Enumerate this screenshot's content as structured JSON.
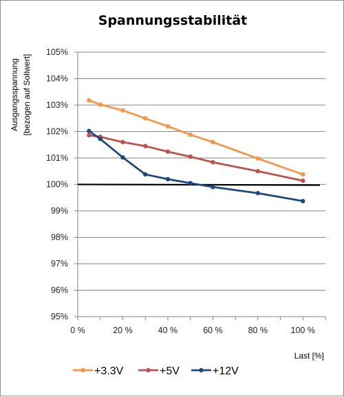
{
  "chart_data": {
    "type": "line",
    "title": "Spannungsstabilität",
    "ylabel_lines": [
      "Ausgangsspannung",
      "[bezogen auf Sollwert]"
    ],
    "xlabel": "Last [%]",
    "xlim": [
      0,
      110
    ],
    "ylim": [
      95,
      105
    ],
    "x_ticks": [
      0,
      20,
      40,
      60,
      80,
      100
    ],
    "x_tick_labels": [
      "0 %",
      "20 %",
      "40 %",
      "60 %",
      "80 %",
      "100 %"
    ],
    "y_ticks": [
      95,
      96,
      97,
      98,
      99,
      100,
      101,
      102,
      103,
      104,
      105
    ],
    "y_tick_labels": [
      "95%",
      "96%",
      "97%",
      "98%",
      "99%",
      "100%",
      "101%",
      "102%",
      "103%",
      "104%",
      "105%"
    ],
    "grid": "horizontal",
    "legend_position": "bottom",
    "reference_line": {
      "y": 100,
      "color": "#000000"
    },
    "series": [
      {
        "name": "+3.3V",
        "color": "#f79646",
        "x": [
          5,
          10,
          20,
          30,
          40,
          50,
          60,
          80,
          100
        ],
        "y": [
          103.18,
          103.02,
          102.8,
          102.5,
          102.2,
          101.88,
          101.6,
          100.98,
          100.38
        ]
      },
      {
        "name": "+5V",
        "color": "#c0504d",
        "x": [
          5,
          10,
          20,
          30,
          40,
          50,
          60,
          80,
          100
        ],
        "y": [
          101.86,
          101.8,
          101.6,
          101.45,
          101.24,
          101.05,
          100.84,
          100.5,
          100.14
        ]
      },
      {
        "name": "+12V",
        "color": "#1f497d",
        "x": [
          5,
          10,
          20,
          30,
          40,
          50,
          60,
          80,
          100
        ],
        "y": [
          102.02,
          101.72,
          101.02,
          100.38,
          100.2,
          100.05,
          99.9,
          99.67,
          99.37
        ]
      }
    ]
  }
}
